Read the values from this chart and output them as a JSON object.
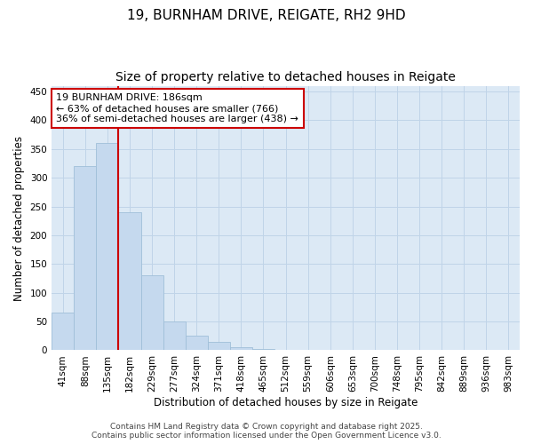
{
  "title1": "19, BURNHAM DRIVE, REIGATE, RH2 9HD",
  "title2": "Size of property relative to detached houses in Reigate",
  "xlabel": "Distribution of detached houses by size in Reigate",
  "ylabel": "Number of detached properties",
  "categories": [
    "41sqm",
    "88sqm",
    "135sqm",
    "182sqm",
    "229sqm",
    "277sqm",
    "324sqm",
    "371sqm",
    "418sqm",
    "465sqm",
    "512sqm",
    "559sqm",
    "606sqm",
    "653sqm",
    "700sqm",
    "748sqm",
    "795sqm",
    "842sqm",
    "889sqm",
    "936sqm",
    "983sqm"
  ],
  "values": [
    65,
    320,
    360,
    240,
    130,
    50,
    25,
    14,
    5,
    2,
    1,
    1,
    1,
    0,
    0,
    0,
    1,
    0,
    1,
    0,
    1
  ],
  "bar_color": "#c5d9ee",
  "bar_edge_color": "#a0bfd8",
  "vline_x_index": 3,
  "vline_color": "#cc0000",
  "annotation_text": "19 BURNHAM DRIVE: 186sqm\n← 63% of detached houses are smaller (766)\n36% of semi-detached houses are larger (438) →",
  "annotation_box_color": "#ffffff",
  "annotation_box_edge": "#cc0000",
  "ylim": [
    0,
    460
  ],
  "yticks": [
    0,
    50,
    100,
    150,
    200,
    250,
    300,
    350,
    400,
    450
  ],
  "grid_color": "#c0d4e8",
  "background_color": "#dce9f5",
  "footer": "Contains HM Land Registry data © Crown copyright and database right 2025.\nContains public sector information licensed under the Open Government Licence v3.0.",
  "title1_fontsize": 11,
  "title2_fontsize": 10,
  "axis_label_fontsize": 8.5,
  "tick_fontsize": 7.5,
  "footer_fontsize": 6.5,
  "annot_fontsize": 8
}
